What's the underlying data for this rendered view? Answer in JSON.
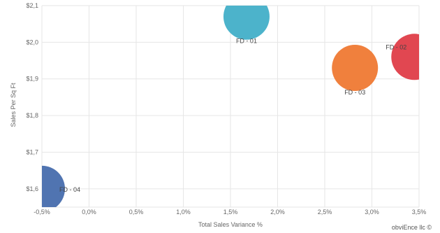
{
  "chart_data": {
    "type": "scatter",
    "xlabel": "Total Sales Variance %",
    "ylabel": "Sales Per Sq Ft",
    "xlim": [
      -0.005,
      0.035
    ],
    "ylim": [
      1.55,
      2.1
    ],
    "x_ticks": [
      -0.005,
      0.0,
      0.005,
      0.01,
      0.015,
      0.02,
      0.025,
      0.03,
      0.035
    ],
    "x_tick_labels": [
      "-0,5%",
      "0,0%",
      "0,5%",
      "1,0%",
      "1,5%",
      "2,0%",
      "2,5%",
      "3,0%",
      "3,5%"
    ],
    "y_ticks": [
      1.6,
      1.7,
      1.8,
      1.9,
      2.0,
      2.1
    ],
    "y_tick_labels": [
      "$1,6",
      "$1,7",
      "$1,8",
      "$1,9",
      "$2,0",
      "$2,1"
    ],
    "grid": true,
    "points": [
      {
        "label": "FD - 01",
        "x": 0.0167,
        "y": 2.07,
        "color": "#46b1c9",
        "label_pos": "below"
      },
      {
        "label": "FD - 02",
        "x": 0.0345,
        "y": 1.96,
        "color": "#e0414b",
        "label_pos": "left"
      },
      {
        "label": "FD - 03",
        "x": 0.0282,
        "y": 1.93,
        "color": "#f07c37",
        "label_pos": "below"
      },
      {
        "label": "FD - 04",
        "x": -0.005,
        "y": 1.6,
        "color": "#4a6fae",
        "label_pos": "right"
      }
    ]
  },
  "footer": {
    "credit": "obviEnce llc ©"
  }
}
